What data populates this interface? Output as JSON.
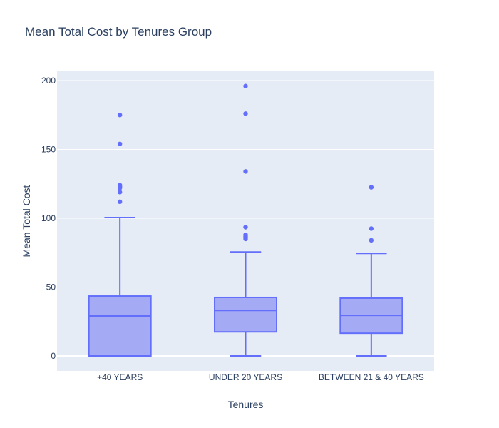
{
  "chart_data": {
    "type": "box",
    "title": "Mean Total Cost by Tenures Group",
    "xlabel": "Tenures",
    "ylabel": "Mean Total Cost",
    "ylim": [
      -10,
      210
    ],
    "yticks": [
      0,
      50,
      100,
      150,
      200
    ],
    "grid": true,
    "categories": [
      "+40 YEARS",
      "UNDER 20 YEARS",
      "BETWEEN 21 & 40 YEARS"
    ],
    "boxes": [
      {
        "category": "+40 YEARS",
        "lower_whisker": 0,
        "q1": 0,
        "median": 29,
        "q3": 43.5,
        "upper_whisker": 100.5,
        "outliers": [
          112,
          119,
          122,
          123,
          124,
          154,
          175
        ]
      },
      {
        "category": "UNDER 20 YEARS",
        "lower_whisker": 0,
        "q1": 17.5,
        "median": 33,
        "q3": 42.5,
        "upper_whisker": 75.5,
        "outliers": [
          85,
          86,
          87,
          88,
          93.5,
          134,
          176,
          196
        ]
      },
      {
        "category": "BETWEEN 21 & 40 YEARS",
        "lower_whisker": 0,
        "q1": 16.5,
        "median": 29.5,
        "q3": 42,
        "upper_whisker": 74.5,
        "outliers": [
          84,
          92.5,
          122.5
        ]
      }
    ],
    "colors": {
      "line": "#636efa",
      "fill": "#a5aaf5",
      "marker": "#636efa",
      "plot_bg": "#e5ecf6",
      "grid": "#ffffff",
      "text": "#2a3f5f"
    }
  }
}
